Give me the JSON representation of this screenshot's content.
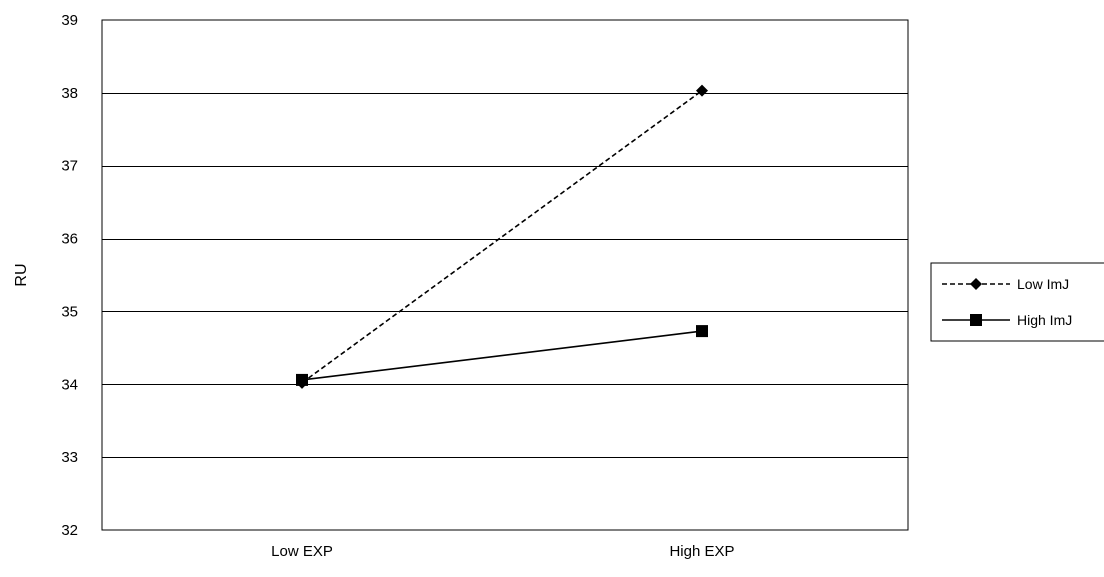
{
  "chart_data": {
    "type": "line",
    "title": "",
    "xlabel": "",
    "ylabel": "RU",
    "categories": [
      "Low EXP",
      "High EXP"
    ],
    "ylim": [
      32,
      39
    ],
    "yticks": [
      32,
      33,
      34,
      35,
      36,
      37,
      38,
      39
    ],
    "ytick_labels": [
      "32",
      "33",
      "34",
      "35",
      "36",
      "37",
      "38",
      "39"
    ],
    "grid": "horizontal",
    "legend_position": "right",
    "series": [
      {
        "name": "Low ImJ",
        "values": [
          34.02,
          38.03
        ],
        "line_style": "dashed",
        "marker": "diamond",
        "color": "#000000"
      },
      {
        "name": "High ImJ",
        "values": [
          34.06,
          34.73
        ],
        "line_style": "solid",
        "marker": "square",
        "color": "#000000"
      }
    ]
  }
}
